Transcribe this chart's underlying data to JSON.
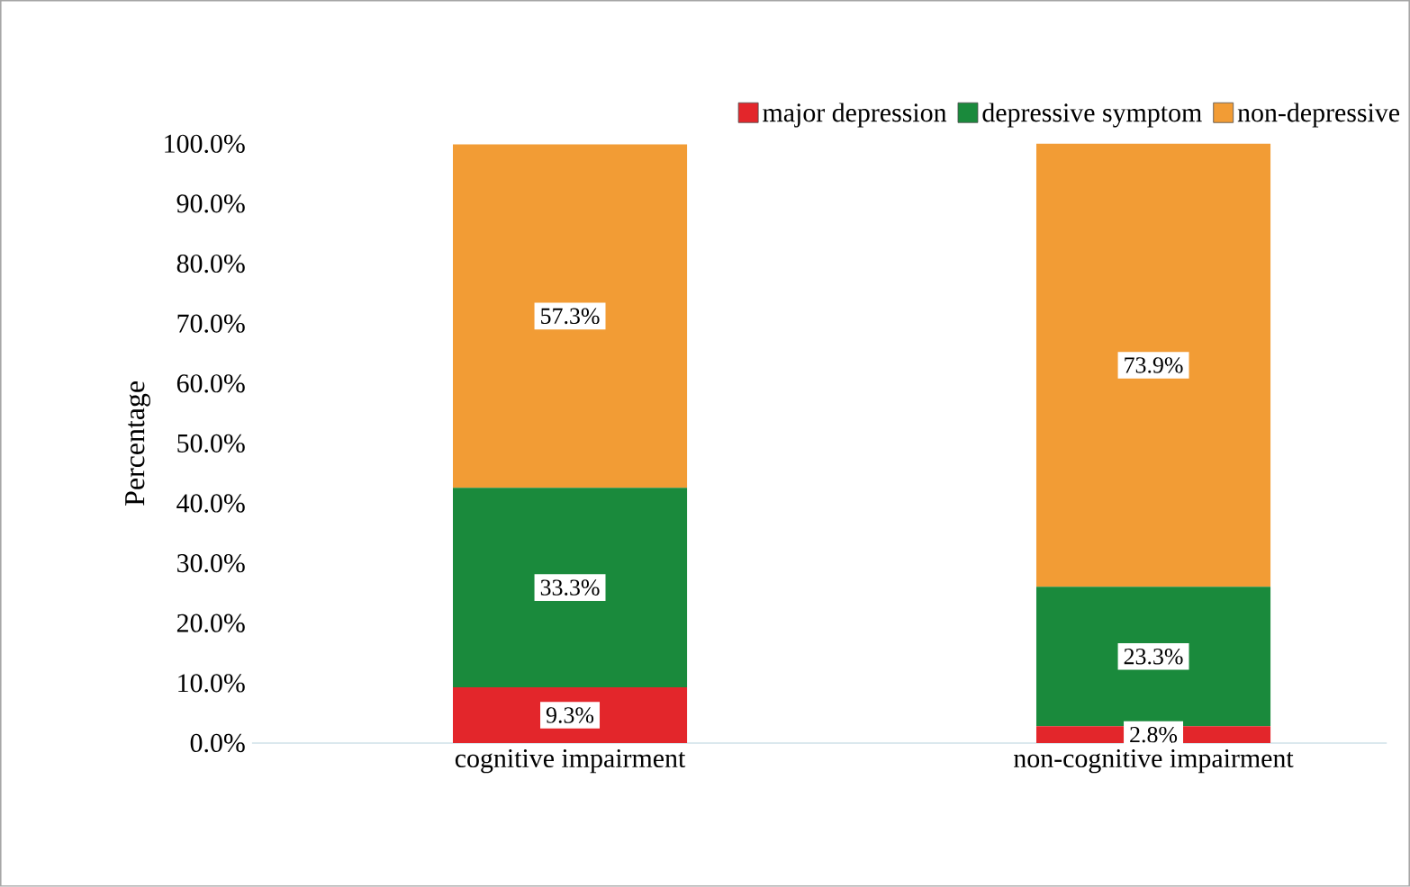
{
  "chart_data": {
    "type": "bar",
    "stacked": true,
    "ylabel": "Percentage",
    "categories": [
      "cognitive impairment",
      "non-cognitive impairment"
    ],
    "series": [
      {
        "name": "major depression",
        "color": "#e3262b",
        "values": [
          9.3,
          2.8
        ],
        "value_labels": [
          "9.3%",
          "2.8%"
        ]
      },
      {
        "name": "depressive symptom",
        "color": "#1a8a3c",
        "values": [
          33.3,
          23.3
        ],
        "value_labels": [
          "33.3%",
          "23.3%"
        ]
      },
      {
        "name": "non-depressive",
        "color": "#f29c35",
        "values": [
          57.3,
          73.9
        ],
        "value_labels": [
          "57.3%",
          "73.9%"
        ]
      }
    ],
    "ylim": [
      0,
      100
    ],
    "yticks": [
      {
        "value": 0,
        "label": "0.0%"
      },
      {
        "value": 10,
        "label": "10.0%"
      },
      {
        "value": 20,
        "label": "20.0%"
      },
      {
        "value": 30,
        "label": "30.0%"
      },
      {
        "value": 40,
        "label": "40.0%"
      },
      {
        "value": 50,
        "label": "50.0%"
      },
      {
        "value": 60,
        "label": "60.0%"
      },
      {
        "value": 70,
        "label": "70.0%"
      },
      {
        "value": 80,
        "label": "80.0%"
      },
      {
        "value": 90,
        "label": "90.0%"
      },
      {
        "value": 100,
        "label": "100.0%"
      }
    ],
    "legend": "top right",
    "grid": false
  }
}
